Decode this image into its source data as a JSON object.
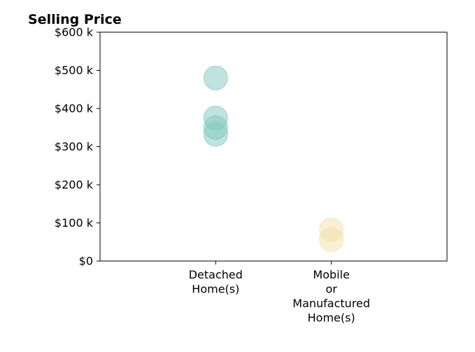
{
  "chart_data": {
    "type": "scatter",
    "title": "Selling Price",
    "xlabel": "",
    "ylabel": "",
    "categories": [
      "Detached Home(s)",
      "Mobile or Manufactured Home(s)"
    ],
    "category_tick_lines": [
      [
        "Detached",
        "Home(s)"
      ],
      [
        "Mobile",
        "or",
        "Manufactured",
        "Home(s)"
      ]
    ],
    "ylim": [
      0,
      600000
    ],
    "yticks": [
      0,
      100000,
      200000,
      300000,
      400000,
      500000,
      600000
    ],
    "ytick_labels": [
      "$0",
      "$100 k",
      "$200 k",
      "$300 k",
      "$400 k",
      "$500 k",
      "$600 k"
    ],
    "grid": false,
    "series": [
      {
        "category": "Detached Home(s)",
        "color": "#7fc8c0",
        "values": [
          480000,
          375000,
          350000,
          332000
        ]
      },
      {
        "category": "Mobile or Manufactured Home(s)",
        "color": "#f3dfa8",
        "values": [
          82000,
          56000
        ]
      }
    ]
  }
}
